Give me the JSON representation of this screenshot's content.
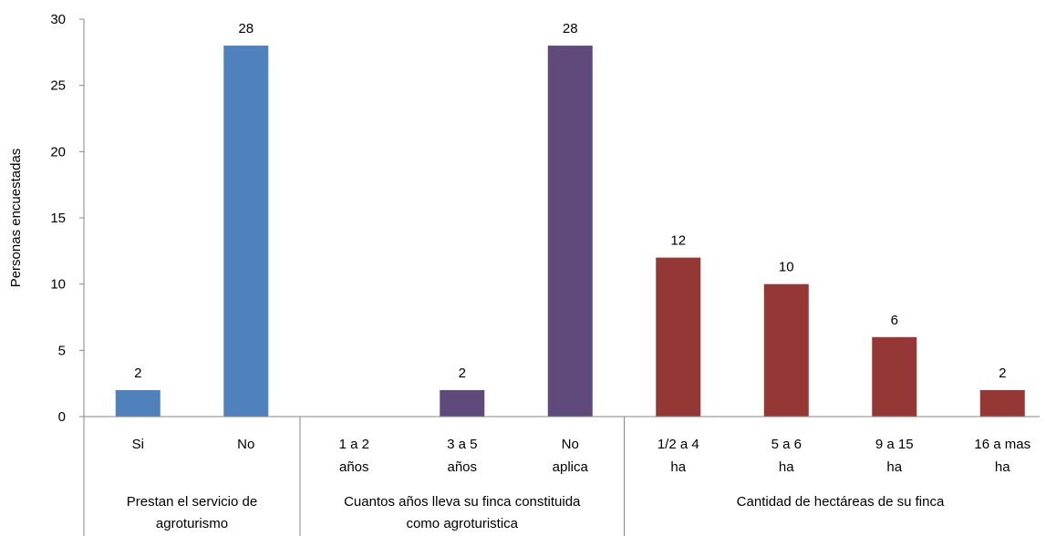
{
  "chart_data": {
    "type": "bar",
    "ylabel": "Personas encuestadas",
    "ylim": [
      0,
      30
    ],
    "yticks": [
      0,
      5,
      10,
      15,
      20,
      25,
      30
    ],
    "grid": false,
    "groups": [
      {
        "name_lines": [
          "Prestan el servicio de",
          "agroturismo"
        ],
        "color": "#4F81BD",
        "categories": [
          [
            "Si"
          ],
          [
            "No"
          ]
        ],
        "values": [
          2,
          28
        ]
      },
      {
        "name_lines": [
          "Cuantos años lleva su finca constituida",
          "como agroturistica"
        ],
        "color": "#604A7B",
        "categories": [
          [
            "1 a 2",
            "años"
          ],
          [
            "3 a 5",
            "años"
          ],
          [
            "No",
            "aplica"
          ]
        ],
        "values": [
          null,
          2,
          28
        ]
      },
      {
        "name_lines": [
          "Cantidad de hectáreas de su finca"
        ],
        "color": "#953735",
        "categories": [
          [
            "1/2 a 4",
            "ha"
          ],
          [
            "5 a 6",
            "ha"
          ],
          [
            "9 a 15",
            "ha"
          ],
          [
            "16 a mas",
            "ha"
          ]
        ],
        "values": [
          12,
          10,
          6,
          2
        ]
      }
    ]
  }
}
